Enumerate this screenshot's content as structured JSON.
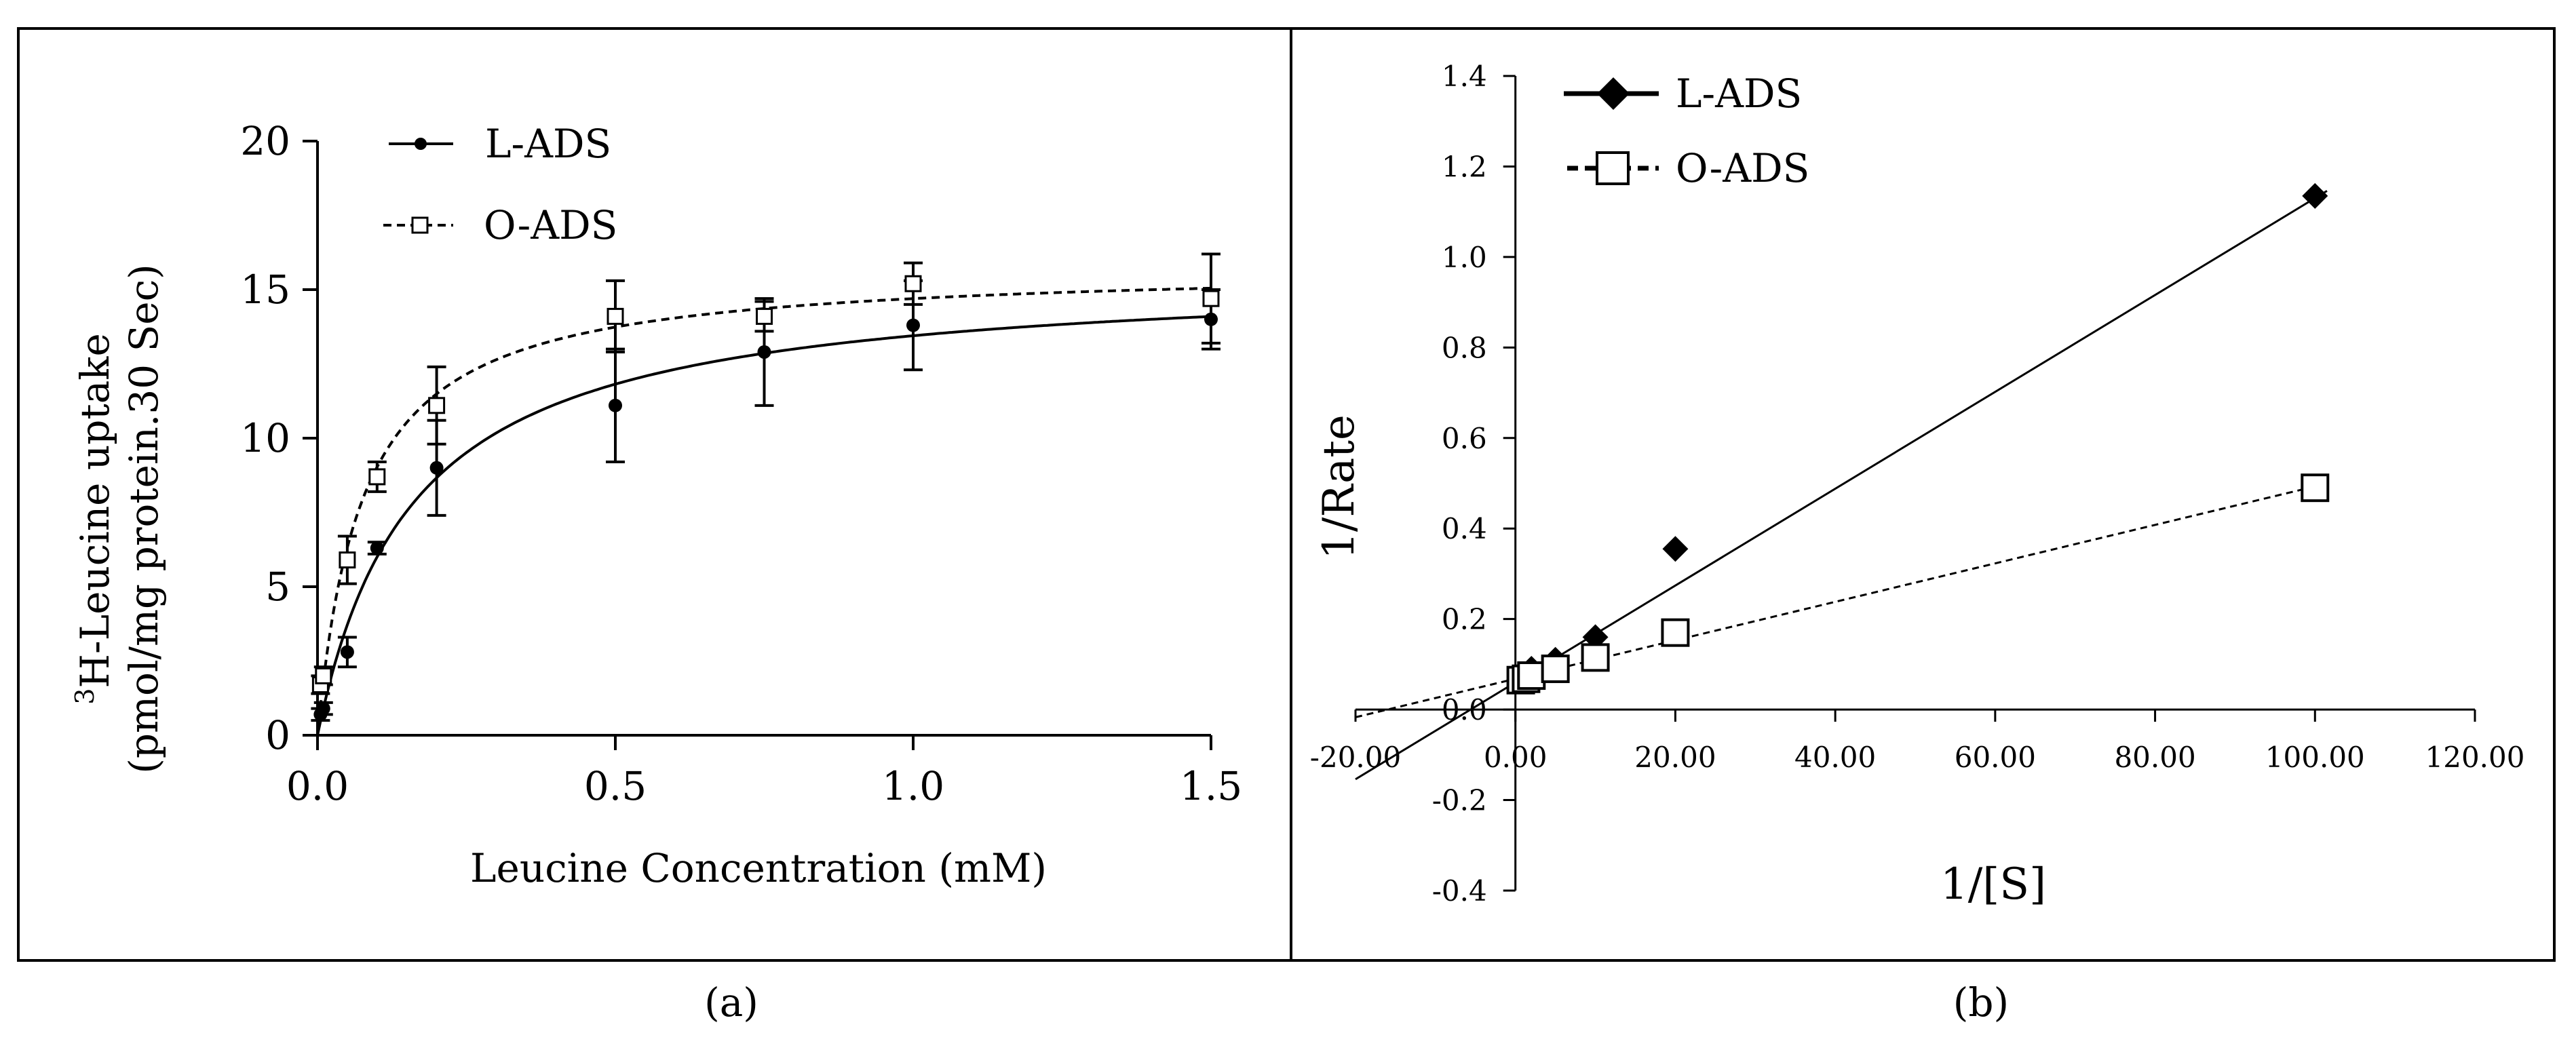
{
  "chart_data": [
    {
      "type": "scatter",
      "panel_caption": "(a)",
      "ylabel_line1_sup": "3",
      "ylabel_line1": "H-Leucine uptake",
      "ylabel_line2": "(pmol/mg protein.30 Sec)",
      "xlabel": "Leucine Concentration (mM)",
      "xlim": [
        0,
        1.5
      ],
      "ylim": [
        0,
        20
      ],
      "x_ticks": [
        0.0,
        0.5,
        1.0,
        1.5
      ],
      "x_tick_labels": [
        "0.0",
        "0.5",
        "1.0",
        "1.5"
      ],
      "y_ticks": [
        0,
        5,
        10,
        15,
        20
      ],
      "y_tick_labels": [
        "0",
        "5",
        "10",
        "15",
        "20"
      ],
      "legend": {
        "position": "top-left",
        "entries": [
          "L-ADS",
          "O-ADS"
        ]
      },
      "series": [
        {
          "name": "L-ADS",
          "marker": "filled-circle",
          "line": "solid",
          "x": [
            0.005,
            0.01,
            0.05,
            0.1,
            0.2,
            0.5,
            0.75,
            1.0,
            1.5
          ],
          "y": [
            0.7,
            0.9,
            2.8,
            6.3,
            9.0,
            11.1,
            12.9,
            13.8,
            14.0
          ],
          "err": [
            0.2,
            0.2,
            0.5,
            0.2,
            1.6,
            1.9,
            1.8,
            1.5,
            1.0
          ],
          "fit": {
            "model": "michaelis-menten",
            "vmax": 15.6,
            "km": 0.16
          }
        },
        {
          "name": "O-ADS",
          "marker": "open-square",
          "line": "dashed",
          "x": [
            0.005,
            0.01,
            0.05,
            0.1,
            0.2,
            0.5,
            0.75,
            1.0,
            1.5
          ],
          "y": [
            1.7,
            2.0,
            5.9,
            8.7,
            11.1,
            14.1,
            14.1,
            15.2,
            14.7
          ],
          "err": [
            0.3,
            0.3,
            0.8,
            0.5,
            1.3,
            1.2,
            0.5,
            0.7,
            1.5
          ],
          "fit": {
            "model": "michaelis-menten",
            "vmax": 15.8,
            "km": 0.075
          }
        }
      ]
    },
    {
      "type": "scatter",
      "panel_caption": "(b)",
      "ylabel": "1/Rate",
      "xlabel": "1/[S]",
      "xlim": [
        -20,
        120
      ],
      "ylim": [
        -0.4,
        1.4
      ],
      "x_ticks": [
        -20,
        0,
        20,
        40,
        60,
        80,
        100,
        120
      ],
      "x_tick_labels": [
        "-20.00",
        "0.00",
        "20.00",
        "40.00",
        "60.00",
        "80.00",
        "100.00",
        "120.00"
      ],
      "y_ticks": [
        -0.4,
        -0.2,
        0.0,
        0.2,
        0.4,
        0.6,
        0.8,
        1.0,
        1.2,
        1.4
      ],
      "y_tick_labels": [
        "-0.4",
        "-0.2",
        "0.0",
        "0.2",
        "0.4",
        "0.6",
        "0.8",
        "1.0",
        "1.2",
        "1.4"
      ],
      "legend": {
        "position": "top-left",
        "entries": [
          "L-ADS",
          "O-ADS"
        ]
      },
      "series": [
        {
          "name": "L-ADS",
          "marker": "filled-diamond",
          "line": "solid",
          "x": [
            0.67,
            1.33,
            2,
            5,
            10,
            20,
            100
          ],
          "y": [
            0.07,
            0.075,
            0.09,
            0.11,
            0.16,
            0.355,
            1.135
          ],
          "fit": {
            "model": "linear",
            "slope": 0.0107,
            "intercept": 0.06,
            "x_range": [
              -20,
              101.5
            ]
          }
        },
        {
          "name": "O-ADS",
          "marker": "open-square",
          "line": "dashed",
          "x": [
            0.67,
            1.33,
            2,
            5,
            10,
            20,
            100
          ],
          "y": [
            0.065,
            0.068,
            0.075,
            0.09,
            0.115,
            0.17,
            0.49
          ],
          "fit": {
            "model": "linear",
            "slope": 0.00425,
            "intercept": 0.068,
            "x_range": [
              -20,
              100
            ]
          }
        }
      ]
    }
  ]
}
